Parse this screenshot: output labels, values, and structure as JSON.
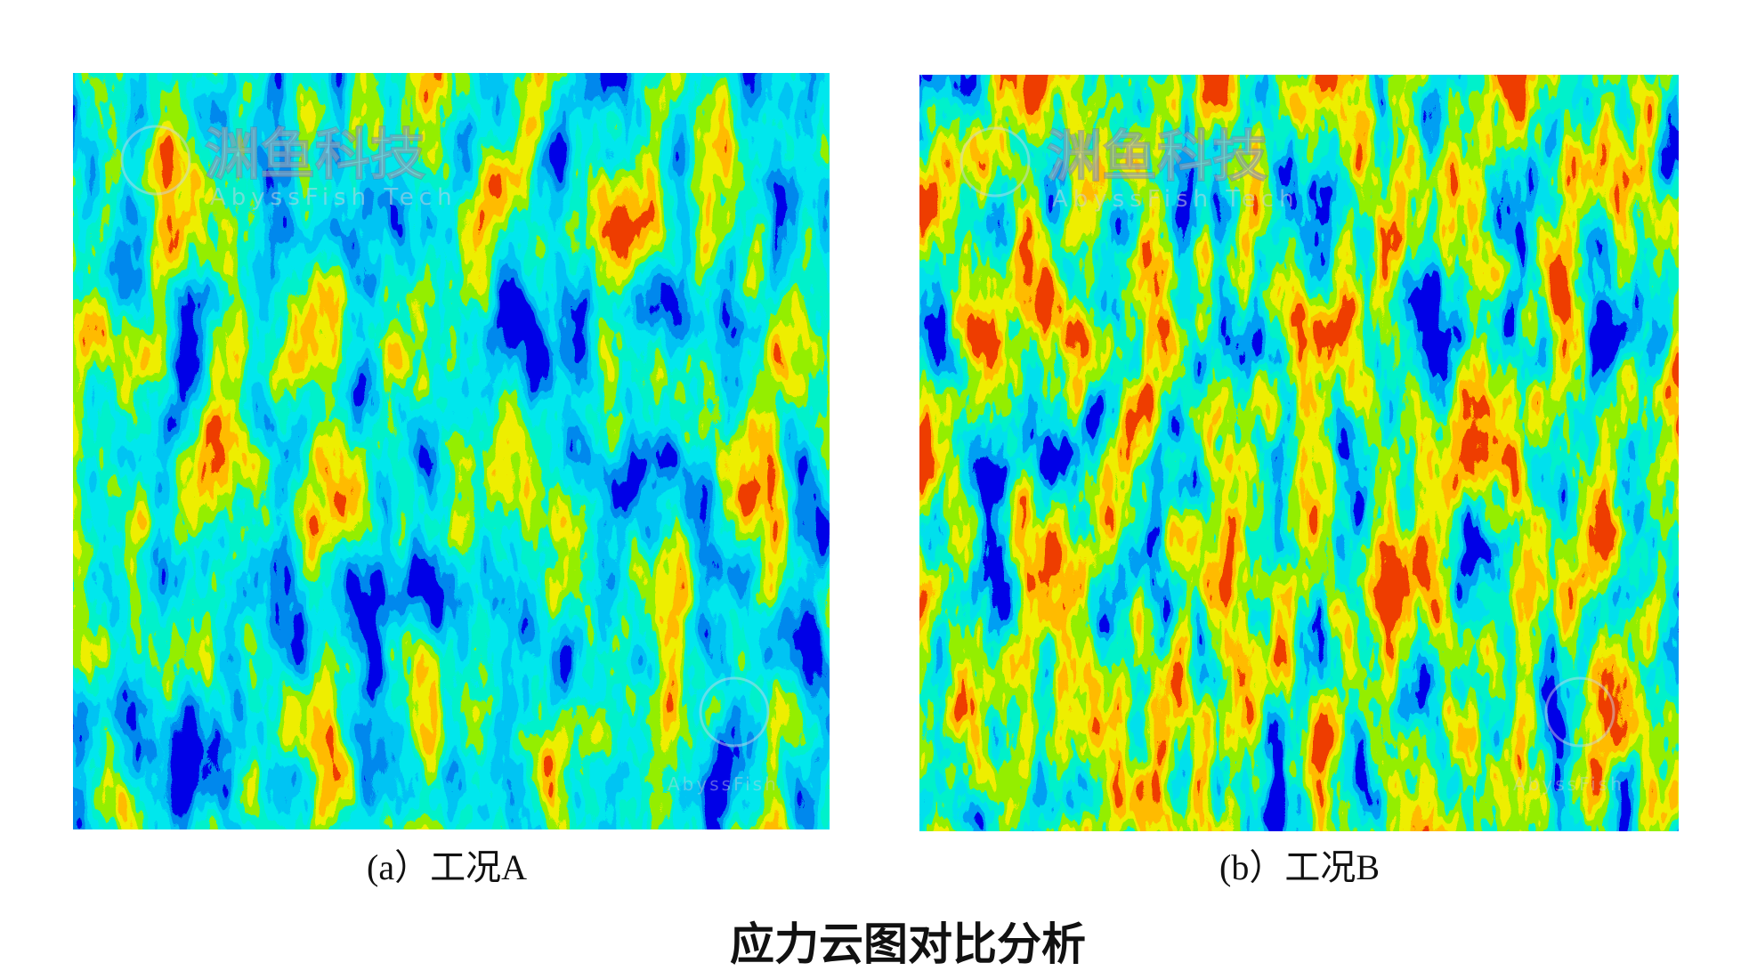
{
  "title": "应力云图对比分析",
  "panels": [
    {
      "caption": "(a）工况A"
    },
    {
      "caption": "(b）工况B"
    }
  ],
  "watermark": {
    "brand": "渊鱼科技",
    "subtitle": "AbyssFish Tech",
    "logo_text": "AbyssFish"
  }
}
